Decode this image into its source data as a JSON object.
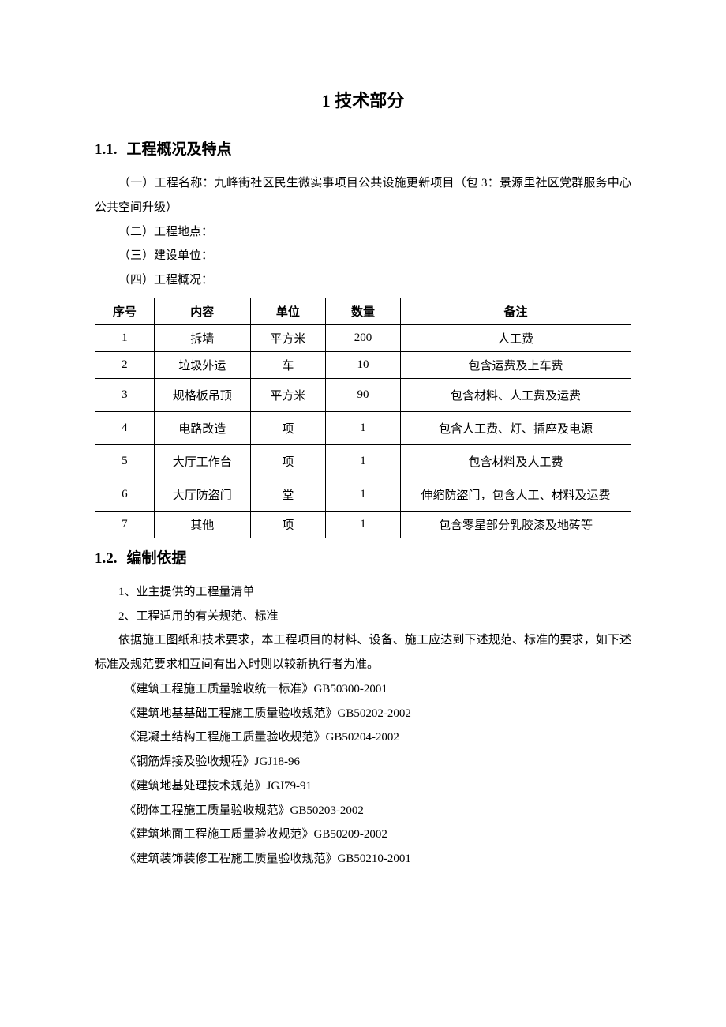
{
  "title": "1 技术部分",
  "section1": {
    "num": "1.1.",
    "heading": "工程概况及特点",
    "item1": "（一）工程名称：九峰街社区民生微实事项目公共设施更新项目（包 3：景源里社区党群服务中心公共空间升级）",
    "item2": "（二）工程地点：",
    "item3": "（三）建设单位：",
    "item4": "（四）工程概况："
  },
  "table": {
    "headers": [
      "序号",
      "内容",
      "单位",
      "数量",
      "备注"
    ],
    "col_widths": [
      "11%",
      "18%",
      "14%",
      "14%",
      "43%"
    ],
    "rows": [
      {
        "seq": "1",
        "content": "拆墙",
        "unit": "平方米",
        "qty": "200",
        "remark": "人工费",
        "tall": false
      },
      {
        "seq": "2",
        "content": "垃圾外运",
        "unit": "车",
        "qty": "10",
        "remark": "包含运费及上车费",
        "tall": false
      },
      {
        "seq": "3",
        "content": "规格板吊顶",
        "unit": "平方米",
        "qty": "90",
        "remark": "包含材料、人工费及运费",
        "tall": true
      },
      {
        "seq": "4",
        "content": "电路改造",
        "unit": "项",
        "qty": "1",
        "remark": "包含人工费、灯、插座及电源",
        "tall": true
      },
      {
        "seq": "5",
        "content": "大厅工作台",
        "unit": "项",
        "qty": "1",
        "remark": "包含材料及人工费",
        "tall": true
      },
      {
        "seq": "6",
        "content": "大厅防盗门",
        "unit": "堂",
        "qty": "1",
        "remark": "伸缩防盗门，包含人工、材料及运费",
        "tall": true
      },
      {
        "seq": "7",
        "content": "其他",
        "unit": "项",
        "qty": "1",
        "remark": "包含零星部分乳胶漆及地砖等",
        "tall": false
      }
    ]
  },
  "section2": {
    "num": "1.2.",
    "heading": "编制依据",
    "item1": "1、业主提供的工程量清单",
    "item2": "2、工程适用的有关规范、标准",
    "para": "依据施工图纸和技术要求，本工程项目的材料、设备、施工应达到下述规范、标准的要求，如下述标准及规范要求相互间有出入时则以较新执行者为准。"
  },
  "standards": [
    "《建筑工程施工质量验收统一标准》GB50300-2001",
    "《建筑地基基础工程施工质量验收规范》GB50202-2002",
    "《混凝土结构工程施工质量验收规范》GB50204-2002",
    "《钢筋焊接及验收规程》JGJ18-96",
    "《建筑地基处理技术规范》JGJ79-91",
    "《砌体工程施工质量验收规范》GB50203-2002",
    "《建筑地面工程施工质量验收规范》GB50209-2002",
    "《建筑装饰装修工程施工质量验收规范》GB50210-2001"
  ],
  "colors": {
    "background": "#ffffff",
    "text": "#000000",
    "border": "#000000"
  },
  "typography": {
    "title_fontsize": 22,
    "heading_fontsize": 19,
    "body_fontsize": 15,
    "line_height": 2.05,
    "font_family": "SimSun"
  }
}
